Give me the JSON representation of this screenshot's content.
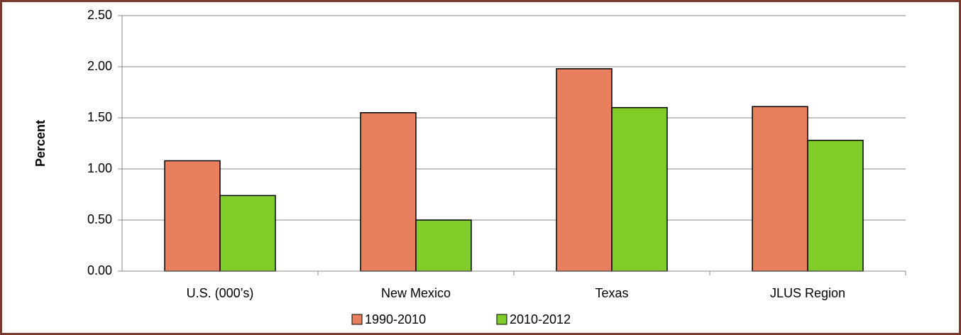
{
  "chart_data": {
    "type": "bar",
    "y_label": "Percent",
    "categories": [
      "U.S. (000’s)",
      "New Mexico",
      "Texas",
      "JLUS Region"
    ],
    "series": [
      {
        "name": "1990-2010",
        "color": "#e8805f",
        "values": [
          1.08,
          1.55,
          1.98,
          1.61
        ]
      },
      {
        "name": "2010-2012",
        "color": "#80cc28",
        "values": [
          0.74,
          0.5,
          1.6,
          1.28
        ]
      }
    ],
    "ylim": [
      0,
      2.5
    ],
    "yticks": [
      {
        "value": 0,
        "label": "0.00"
      },
      {
        "value": 0.5,
        "label": "0.50"
      },
      {
        "value": 1,
        "label": "1.00"
      },
      {
        "value": 1.5,
        "label": "1.50"
      },
      {
        "value": 2,
        "label": "2.00"
      },
      {
        "value": 2.5,
        "label": "2.50"
      }
    ],
    "grid": true
  }
}
